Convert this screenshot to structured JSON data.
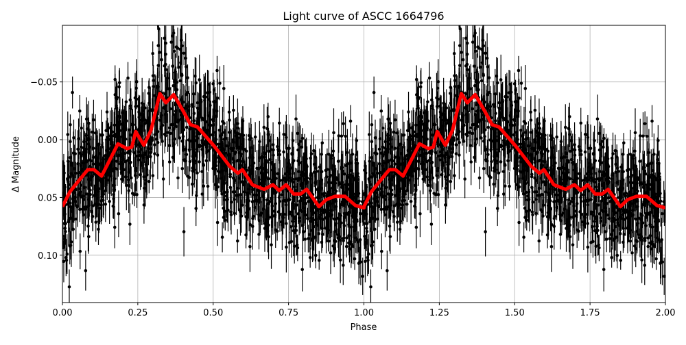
{
  "chart_data": {
    "type": "scatter",
    "title": "Light curve of ASCC 1664796",
    "xlabel": "Phase",
    "ylabel": "Δ Magnitude",
    "xlim": [
      0,
      2
    ],
    "ylim": [
      0.141,
      -0.099
    ],
    "y_inverted": true,
    "grid": true,
    "x_ticks": [
      "0.00",
      "0.25",
      "0.50",
      "0.75",
      "1.00",
      "1.25",
      "1.50",
      "1.75",
      "2.00"
    ],
    "y_ticks": [
      "−0.05",
      "0.00",
      "0.05",
      "0.10"
    ],
    "colors": {
      "observations": "#000000",
      "model": "#ff0000",
      "grid": "#b0b0b0"
    },
    "observations": {
      "marker": "dot-with-errorbar",
      "scatter_sigma": 0.025,
      "error_range": [
        0.008,
        0.022
      ],
      "count_per_cycle": 1400
    },
    "model": {
      "period_repeat": true,
      "phase": [
        0.0,
        0.025,
        0.048,
        0.084,
        0.105,
        0.13,
        0.184,
        0.214,
        0.23,
        0.243,
        0.27,
        0.294,
        0.323,
        0.343,
        0.369,
        0.4,
        0.425,
        0.448,
        0.503,
        0.555,
        0.582,
        0.597,
        0.63,
        0.669,
        0.698,
        0.719,
        0.742,
        0.767,
        0.79,
        0.81,
        0.851,
        0.874,
        0.904,
        0.937,
        0.972,
        1.0
      ],
      "magnitude": [
        0.058,
        0.045,
        0.0375,
        0.026,
        0.026,
        0.0315,
        0.0036,
        0.0077,
        0.0065,
        -0.007,
        0.0048,
        -0.0083,
        -0.04,
        -0.032,
        -0.039,
        -0.025,
        -0.013,
        -0.011,
        0.0054,
        0.023,
        0.029,
        0.026,
        0.039,
        0.043,
        0.039,
        0.044,
        0.039,
        0.047,
        0.047,
        0.043,
        0.058,
        0.052,
        0.049,
        0.049,
        0.057,
        0.059
      ]
    }
  }
}
